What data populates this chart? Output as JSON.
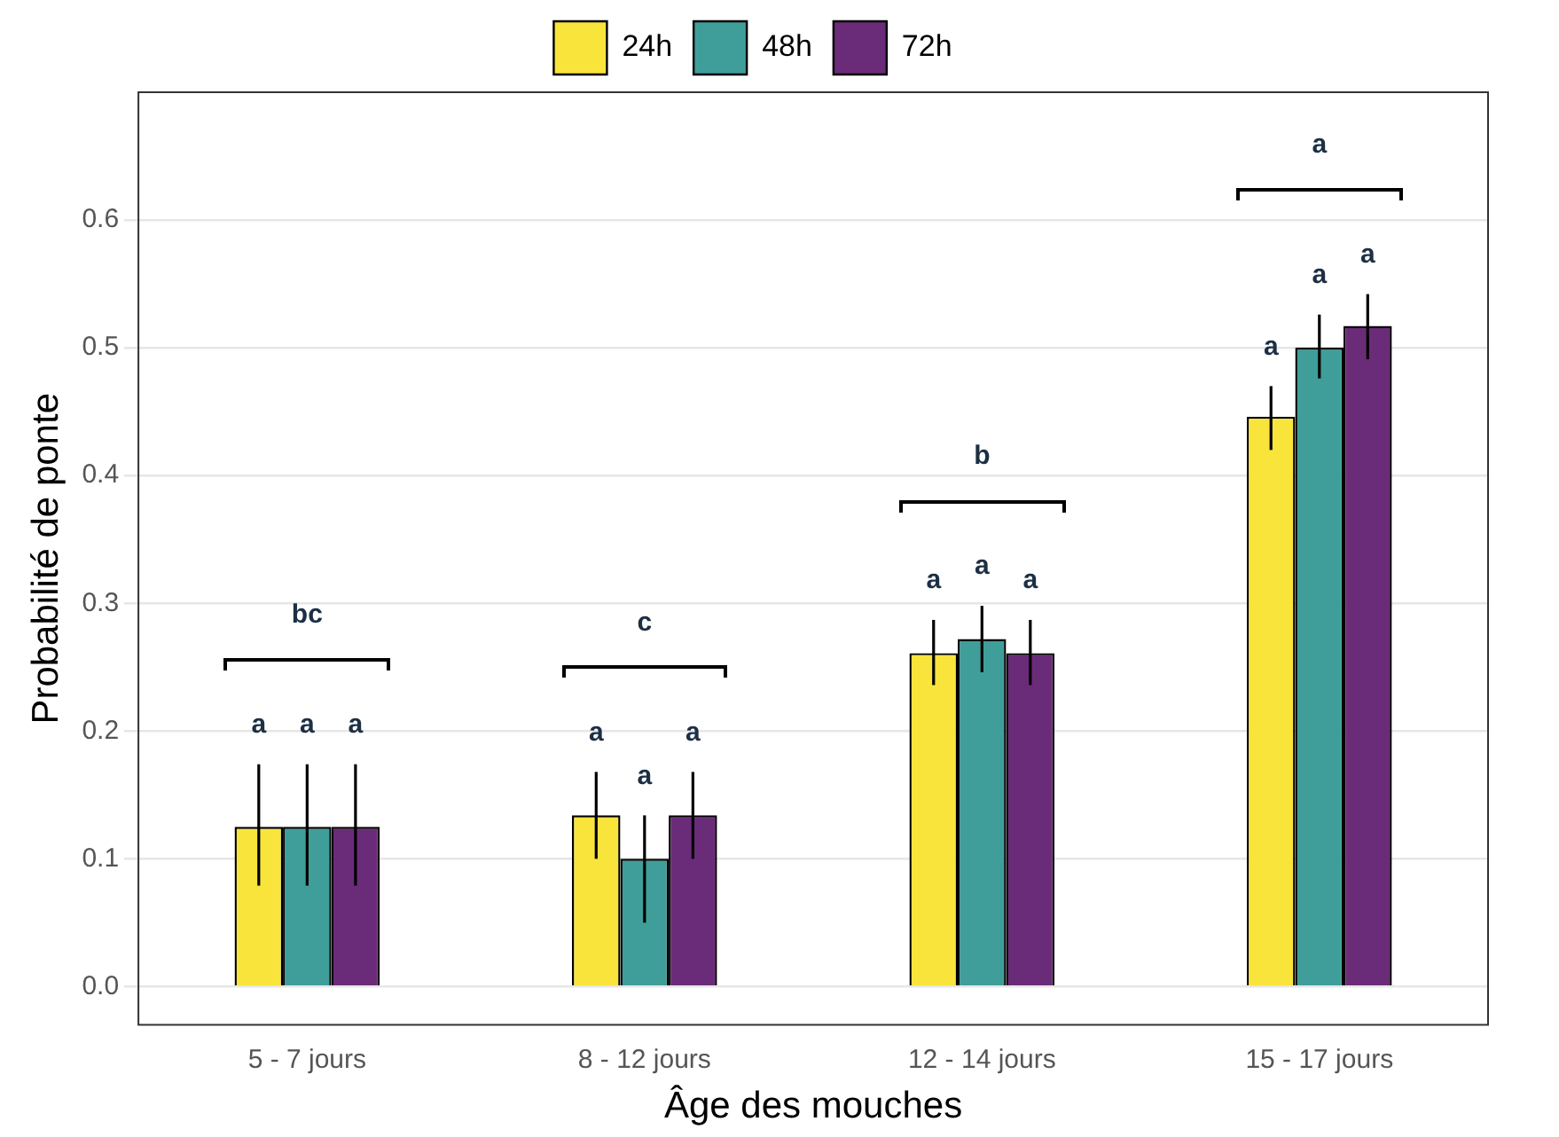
{
  "chart_data": {
    "type": "bar",
    "xlabel": "Âge des mouches",
    "ylabel": "Probabilité de ponte",
    "categories": [
      "5 - 7 jours",
      "8 - 12 jours",
      "12 - 14 jours",
      "15 - 17 jours"
    ],
    "series": [
      {
        "name": "24h",
        "color": "#f9e43c",
        "values": [
          0.125,
          0.134,
          0.261,
          0.446
        ],
        "errors": [
          [
            0.079,
            0.174
          ],
          [
            0.1,
            0.168
          ],
          [
            0.236,
            0.287
          ],
          [
            0.42,
            0.47
          ]
        ]
      },
      {
        "name": "48h",
        "color": "#3f9e99",
        "values": [
          0.125,
          0.1,
          0.272,
          0.5
        ],
        "errors": [
          [
            0.079,
            0.174
          ],
          [
            0.05,
            0.134
          ],
          [
            0.246,
            0.298
          ],
          [
            0.476,
            0.526
          ]
        ]
      },
      {
        "name": "72h",
        "color": "#6a2c78",
        "values": [
          0.125,
          0.134,
          0.261,
          0.517
        ],
        "errors": [
          [
            0.079,
            0.174
          ],
          [
            0.1,
            0.168
          ],
          [
            0.236,
            0.287
          ],
          [
            0.491,
            0.542
          ]
        ]
      }
    ],
    "ylim": [
      -0.03,
      0.7
    ],
    "yticks": [
      {
        "value": 0,
        "label": "0.0"
      },
      0.1,
      0.2,
      0.3,
      0.4,
      0.5,
      0.6
    ],
    "grid": "y",
    "legend": "top",
    "annotations": [
      "a",
      "a",
      "a",
      "bc",
      "a",
      "a",
      "a",
      "c",
      "a",
      "a",
      "a",
      "b",
      "a",
      "a",
      "a",
      "a"
    ]
  }
}
